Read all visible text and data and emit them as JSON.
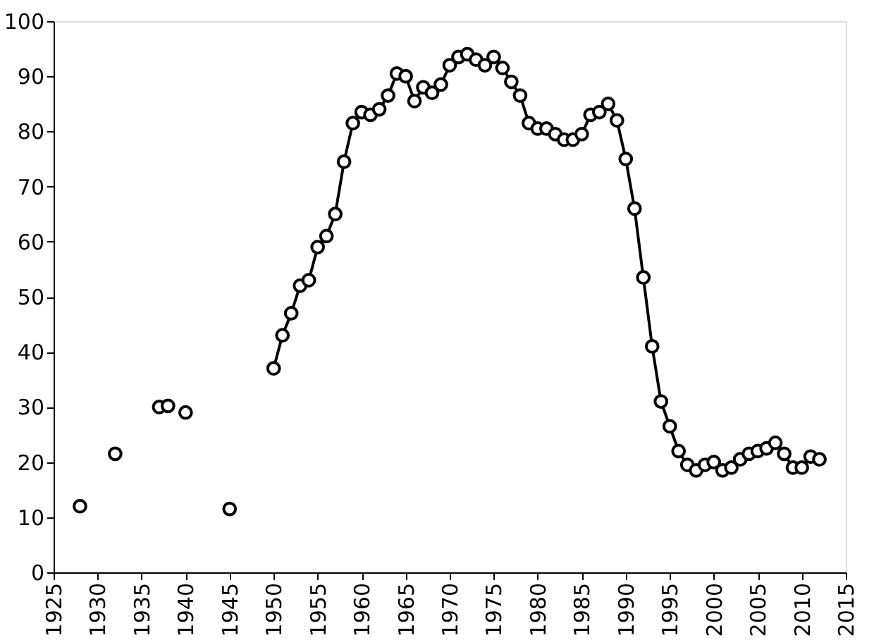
{
  "chart_data": {
    "type": "line",
    "series": [
      {
        "type": "scatter",
        "color": "#000000",
        "x": [
          1928,
          1932,
          1937,
          1938,
          1940,
          1945
        ],
        "values": [
          12,
          21.5,
          30,
          30.2,
          29,
          11.5
        ]
      },
      {
        "color": "#000000",
        "x": [
          1950,
          1951,
          1952,
          1953,
          1954,
          1955,
          1956,
          1957,
          1958,
          1959,
          1960,
          1961,
          1962,
          1963,
          1964,
          1965,
          1966,
          1967,
          1968,
          1969,
          1970,
          1971,
          1972,
          1973,
          1974,
          1975,
          1976,
          1977,
          1978,
          1979,
          1980,
          1981,
          1982,
          1983,
          1984,
          1985,
          1986,
          1987,
          1988,
          1989,
          1990,
          1991,
          1992,
          1993,
          1994,
          1995,
          1996,
          1997,
          1998,
          1999,
          2000,
          2001,
          2002,
          2003,
          2004,
          2005,
          2006,
          2007,
          2008,
          2009,
          2010,
          2011,
          2012
        ],
        "values": [
          37,
          43,
          47,
          52,
          53,
          59,
          61,
          65,
          74.5,
          81.5,
          83.5,
          83,
          84,
          86.5,
          90.5,
          90,
          85.5,
          88,
          87,
          88.5,
          92,
          93.5,
          94,
          93,
          92,
          93.5,
          91.5,
          89,
          86.5,
          81.5,
          80.5,
          80.5,
          79.5,
          78.5,
          78.5,
          79.5,
          83,
          83.5,
          85,
          82,
          75,
          66,
          53.5,
          41,
          31,
          26.5,
          22,
          19.5,
          18.5,
          19.5,
          20,
          18.5,
          19,
          20.5,
          21.5,
          22,
          22.5,
          23.5,
          21.5,
          19,
          19,
          21,
          20.5
        ]
      }
    ],
    "xlim": [
      1925,
      2015
    ],
    "xticks": [
      1925,
      1930,
      1935,
      1940,
      1945,
      1950,
      1955,
      1960,
      1965,
      1970,
      1975,
      1980,
      1985,
      1990,
      1995,
      2000,
      2005,
      2010,
      2015
    ],
    "ylim": [
      0,
      100
    ],
    "yticks": [
      0,
      10,
      20,
      30,
      40,
      50,
      60,
      70,
      80,
      90,
      100
    ],
    "marker": "circle",
    "grid": false
  }
}
